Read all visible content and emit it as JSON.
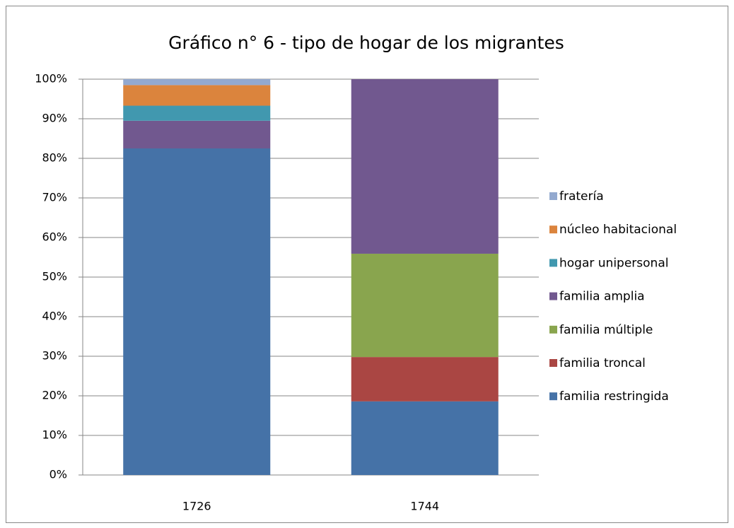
{
  "chart_data": {
    "type": "stacked_bar",
    "title": "Gráfico n° 6 - tipo de hogar de los migrantes",
    "categories": [
      "1726",
      "1744"
    ],
    "series": [
      {
        "name": "familia restringida",
        "color": "#4572a7",
        "values": [
          82.5,
          18.6
        ]
      },
      {
        "name": "familia troncal",
        "color": "#aa4643",
        "values": [
          0,
          11.2
        ]
      },
      {
        "name": "familia múltiple",
        "color": "#89a54e",
        "values": [
          0,
          26.1
        ]
      },
      {
        "name": "familia amplia",
        "color": "#71588f",
        "values": [
          7,
          44.1
        ]
      },
      {
        "name": "hogar unipersonal",
        "color": "#4198af",
        "values": [
          3.8,
          0
        ]
      },
      {
        "name": "núcleo habitacional",
        "color": "#db843d",
        "values": [
          5.2,
          0
        ]
      },
      {
        "name": "fratería",
        "color": "#93a9cf",
        "values": [
          1.5,
          0
        ]
      }
    ],
    "ylim": [
      0,
      100
    ],
    "yticks": [
      {
        "value": 0,
        "label": "0%"
      },
      {
        "value": 10,
        "label": "10%"
      },
      {
        "value": 20,
        "label": "20%"
      },
      {
        "value": 30,
        "label": "30%"
      },
      {
        "value": 40,
        "label": "40%"
      },
      {
        "value": 50,
        "label": "50%"
      },
      {
        "value": 60,
        "label": "60%"
      },
      {
        "value": 70,
        "label": "70%"
      },
      {
        "value": 80,
        "label": "80%"
      },
      {
        "value": 90,
        "label": "90%"
      },
      {
        "value": 100,
        "label": "100%"
      }
    ],
    "grid": true,
    "legend": "right"
  }
}
